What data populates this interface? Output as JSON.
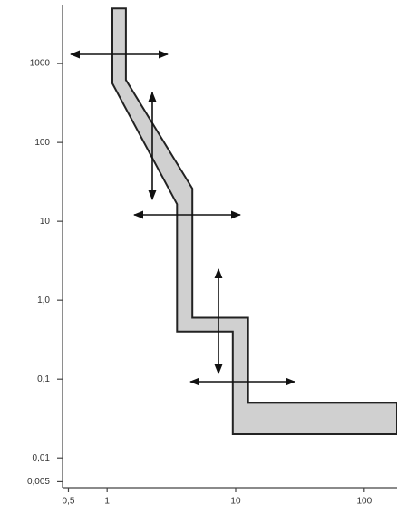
{
  "chart_data": {
    "type": "area",
    "x": [
      1.1,
      1.4,
      1.4,
      4.6,
      4.6,
      12.5,
      12.5,
      180,
      180,
      9.5,
      9.5,
      3.5,
      3.5,
      1.1
    ],
    "y": [
      5000,
      5000,
      620,
      26,
      0.6,
      0.6,
      0.05,
      0.05,
      0.02,
      0.02,
      0.4,
      0.4,
      16.5,
      560
    ],
    "color": "#d0d0d0",
    "log_x": true,
    "log_y": true,
    "xlim": [
      0.45,
      180
    ],
    "ylim": [
      0.0042,
      5600
    ],
    "xticks": [
      {
        "value": 0.5,
        "label": "0,5"
      },
      1,
      10,
      100
    ],
    "yticks": [
      {
        "value": 0.005,
        "label": "0,005"
      },
      {
        "value": 0.01,
        "label": "0,01"
      },
      {
        "value": 0.1,
        "label": "0,1"
      },
      {
        "value": 1,
        "label": "1,0"
      },
      10,
      100,
      1000
    ]
  }
}
